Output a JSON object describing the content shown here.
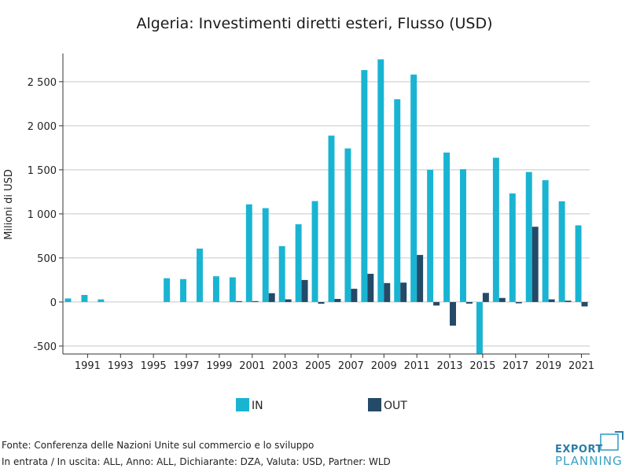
{
  "chart_data": {
    "type": "bar",
    "title": "Algeria: Investimenti diretti esteri, Flusso (USD)",
    "ylabel": "Milioni di USD",
    "xlabel": "",
    "x": [
      1990,
      1991,
      1992,
      1993,
      1994,
      1995,
      1996,
      1997,
      1998,
      1999,
      2000,
      2001,
      2002,
      2003,
      2004,
      2005,
      2006,
      2007,
      2008,
      2009,
      2010,
      2011,
      2012,
      2013,
      2014,
      2015,
      2016,
      2017,
      2018,
      2019,
      2020,
      2021
    ],
    "x_tick_labels": [
      "1991",
      "1993",
      "1995",
      "1997",
      "1999",
      "2001",
      "2003",
      "2005",
      "2007",
      "2009",
      "2011",
      "2013",
      "2015",
      "2017",
      "2019",
      "2021"
    ],
    "y_tick_values": [
      -500,
      0,
      500,
      1000,
      1500,
      2000,
      2500
    ],
    "y_tick_labels": [
      "-500",
      "0",
      "500",
      "1 000",
      "1 500",
      "2 000",
      "2 500"
    ],
    "ylim": [
      -590,
      2820
    ],
    "grid": "horizontal",
    "legend_position": "bottom-center",
    "series": [
      {
        "name": "IN",
        "color": "#1ab4d3",
        "values": [
          40,
          80,
          30,
          0,
          0,
          0,
          270,
          260,
          606,
          292,
          280,
          1108,
          1065,
          634,
          882,
          1145,
          1888,
          1743,
          2632,
          2754,
          2301,
          2581,
          1500,
          1696,
          1507,
          -584,
          1637,
          1232,
          1475,
          1382,
          1143,
          870
        ]
      },
      {
        "name": "OUT",
        "color": "#234a67",
        "values": [
          0,
          0,
          0,
          0,
          0,
          0,
          0,
          0,
          0,
          0,
          10,
          10,
          100,
          30,
          250,
          -20,
          35,
          150,
          320,
          215,
          220,
          534,
          -40,
          -268,
          -18,
          103,
          46,
          -15,
          854,
          30,
          15,
          -50
        ]
      }
    ]
  },
  "footer": {
    "source": "Fonte: Conferenza delle Nazioni Unite sul commercio e lo sviluppo",
    "filters": "In entrata / In uscita: ALL, Anno: ALL, Dichiarante: DZA, Valuta: USD, Partner: WLD"
  },
  "logo": {
    "line1": "EXPORT",
    "line2": "PLANNING",
    "color_dark": "#2a7fa6",
    "color_light": "#3aa0c4"
  }
}
